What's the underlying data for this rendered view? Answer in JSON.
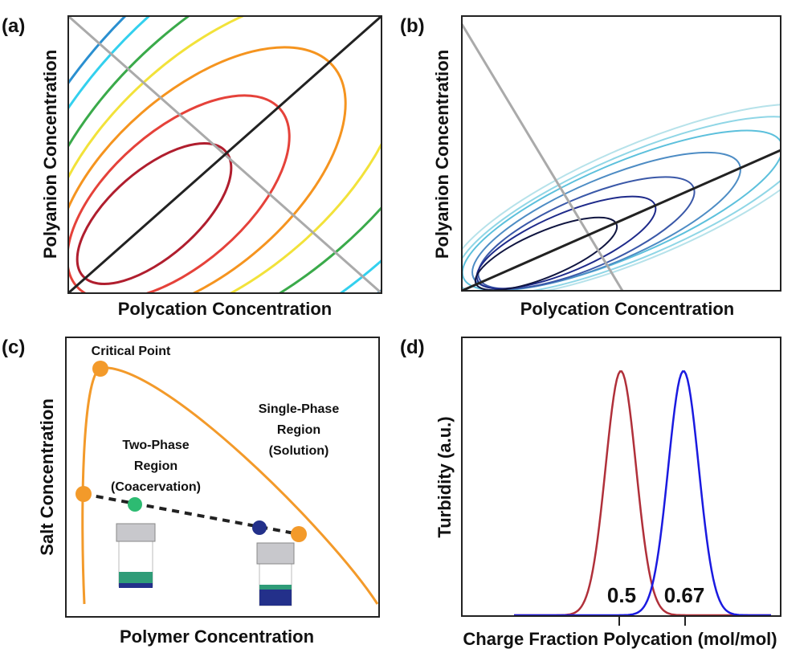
{
  "panels": [
    {
      "label": "(a)",
      "x_label": "Polycation Concentration",
      "y_label": "Polyanion Concentration"
    },
    {
      "label": "(b)",
      "x_label": "Polycation Concentration",
      "y_label": "Polyanion Concentration"
    },
    {
      "label": "(c)",
      "x_label": "Polymer Concentration",
      "y_label": "Salt Concentration",
      "annotations": {
        "critical": "Critical Point",
        "two_phase": [
          "Two-Phase",
          "Region",
          "(Coacervation)"
        ],
        "single_phase": [
          "Single-Phase",
          "Region",
          "(Solution)"
        ]
      }
    },
    {
      "label": "(d)",
      "x_label": "Charge Fraction Polycation (mol/mol)",
      "y_label": "Turbidity (a.u.)",
      "ticks": [
        0.5,
        0.67
      ]
    }
  ]
}
